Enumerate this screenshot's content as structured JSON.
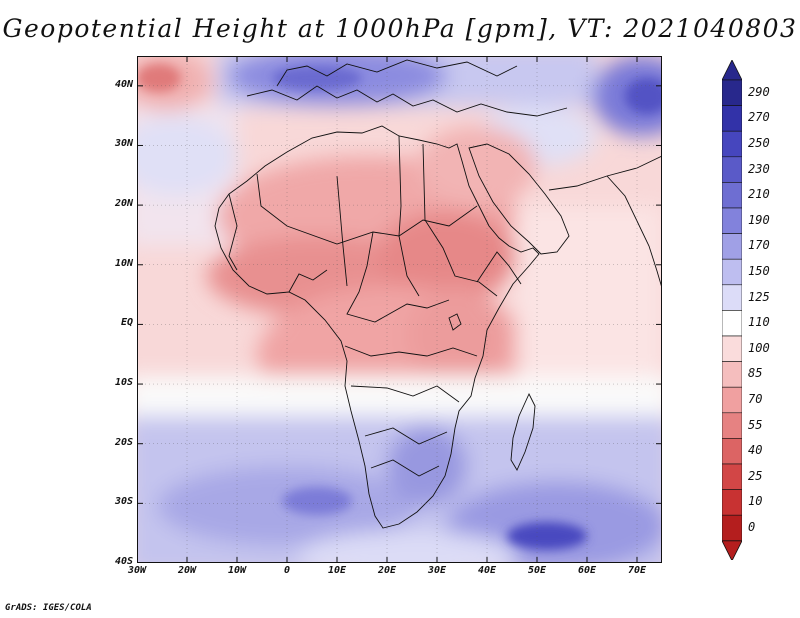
{
  "title": "Geopotential Height at 1000hPa [gpm], VT: 2021040803",
  "credit": "GrADS: IGES/COLA",
  "map": {
    "lat_labels": [
      "40N",
      "30N",
      "20N",
      "10N",
      "EQ",
      "10S",
      "20S",
      "30S",
      "40S"
    ],
    "lon_labels": [
      "30W",
      "20W",
      "10W",
      "0",
      "10E",
      "20E",
      "30E",
      "40E",
      "50E",
      "60E",
      "70E"
    ],
    "lon_range": [
      -30,
      75
    ],
    "lat_range": [
      -40,
      45
    ]
  },
  "colorbar": {
    "labels": [
      "290",
      "270",
      "250",
      "230",
      "210",
      "190",
      "170",
      "150",
      "125",
      "110",
      "100",
      "85",
      "70",
      "55",
      "40",
      "25",
      "10",
      "0"
    ],
    "colors": [
      "#28288c",
      "#3232a8",
      "#4646be",
      "#5a5ac8",
      "#6e6ed2",
      "#8282dc",
      "#a0a0e6",
      "#bebef0",
      "#dcdcf8",
      "#ffffff",
      "#fadcdc",
      "#f5bebe",
      "#f0a0a0",
      "#e68282",
      "#dc6464",
      "#d24646",
      "#c83232",
      "#b41e1e"
    ]
  }
}
